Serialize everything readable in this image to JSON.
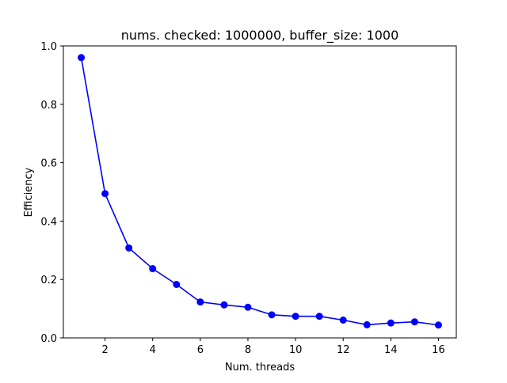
{
  "chart_data": {
    "type": "line",
    "title": "nums. checked: 1000000, buffer_size: 1000",
    "xlabel": "Num. threads",
    "ylabel": "Efficiency",
    "xlim": [
      0.25,
      16.75
    ],
    "ylim": [
      0.0,
      1.0
    ],
    "xticks": [
      2,
      4,
      6,
      8,
      10,
      12,
      14,
      16
    ],
    "yticks": [
      0.0,
      0.2,
      0.4,
      0.6,
      0.8,
      1.0
    ],
    "ytick_labels": [
      "0.0",
      "0.2",
      "0.4",
      "0.6",
      "0.8",
      "1.0"
    ],
    "grid": false,
    "series": [
      {
        "color": "#0000ff",
        "marker": "circle",
        "x": [
          1,
          2,
          3,
          4,
          5,
          6,
          7,
          8,
          9,
          10,
          11,
          12,
          13,
          14,
          15,
          16
        ],
        "y": [
          0.96,
          0.494,
          0.308,
          0.237,
          0.183,
          0.123,
          0.113,
          0.105,
          0.079,
          0.074,
          0.074,
          0.061,
          0.045,
          0.051,
          0.055,
          0.044
        ]
      }
    ]
  }
}
